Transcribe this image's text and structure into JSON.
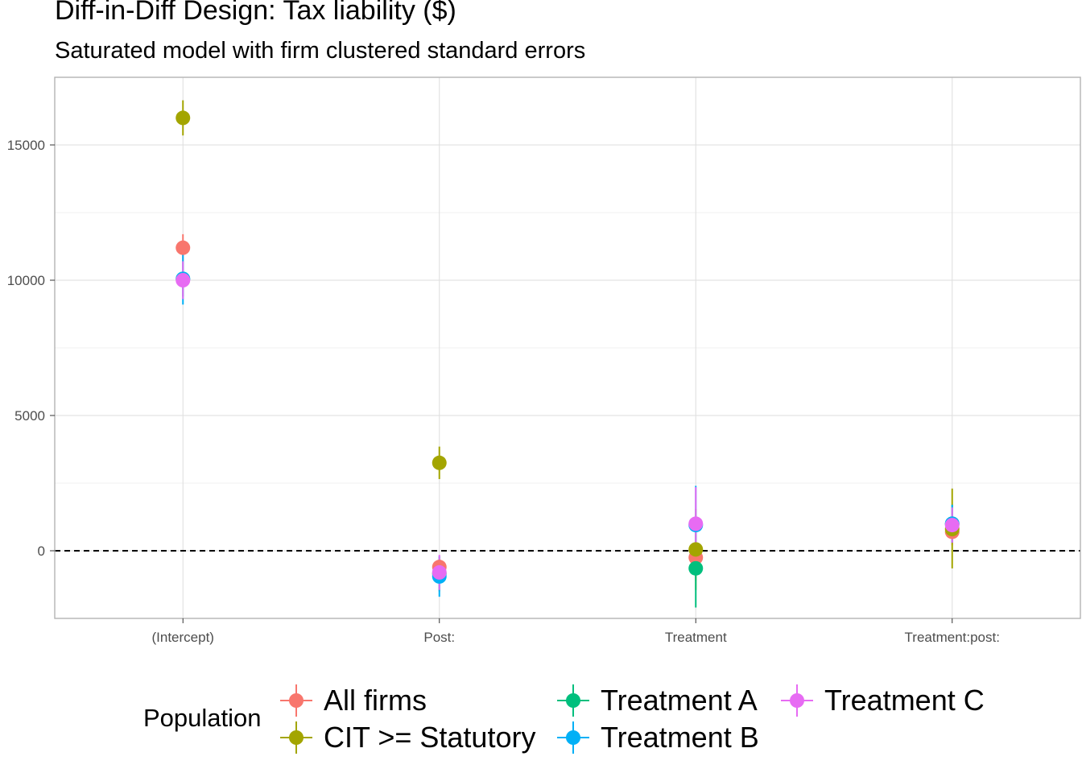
{
  "title": "Diff-in-Diff Design: Tax liability  ($)",
  "subtitle": "Saturated model with firm clustered standard errors",
  "legend_title": "Population",
  "chart_data": {
    "type": "scatter",
    "title": "Diff-in-Diff Design: Tax liability  ($)",
    "subtitle": "Saturated model with firm clustered standard errors",
    "xlabel": "",
    "ylabel": "",
    "categories": [
      "(Intercept)",
      "Post:",
      "Treatment",
      "Treatment:post:"
    ],
    "y_ticks": [
      0,
      5000,
      10000,
      15000
    ],
    "ylim": [
      -2500,
      17500
    ],
    "grid": true,
    "reference_line": {
      "y": 0,
      "style": "dashed"
    },
    "legend_position": "bottom",
    "series": [
      {
        "name": "All firms",
        "color": "#F8766D",
        "values": [
          11200,
          -600,
          -250,
          700
        ],
        "lower": [
          10700,
          -1000,
          -1100,
          200
        ],
        "upper": [
          11700,
          -200,
          600,
          1200
        ]
      },
      {
        "name": "CIT >= Statutory",
        "color": "#A3A500",
        "values": [
          16000,
          3250,
          50,
          800
        ],
        "lower": [
          15350,
          2650,
          -1450,
          -650
        ],
        "upper": [
          16650,
          3850,
          1550,
          2300
        ]
      },
      {
        "name": "Treatment A",
        "color": "#00BF7D",
        "values": [
          10050,
          -850,
          -650,
          1000
        ],
        "lower": [
          9400,
          -1500,
          -2100,
          300
        ],
        "upper": [
          10700,
          -200,
          800,
          1700
        ]
      },
      {
        "name": "Treatment B",
        "color": "#00B0F6",
        "values": [
          10050,
          -950,
          950,
          1000
        ],
        "lower": [
          9100,
          -1700,
          -500,
          300
        ],
        "upper": [
          11000,
          -200,
          2400,
          1700
        ]
      },
      {
        "name": "Treatment C",
        "color": "#E76BF3",
        "values": [
          10000,
          -800,
          1000,
          950
        ],
        "lower": [
          9300,
          -1450,
          -350,
          300
        ],
        "upper": [
          10700,
          -150,
          2350,
          1600
        ]
      }
    ]
  }
}
